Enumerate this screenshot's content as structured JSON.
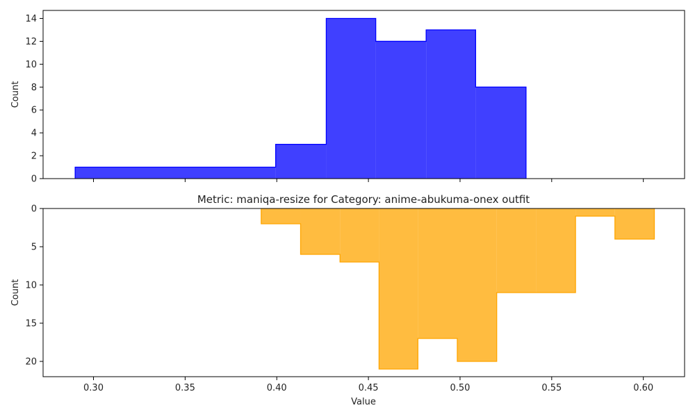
{
  "chart_data": [
    {
      "type": "histogram-step",
      "title": "",
      "xlabel": "",
      "ylabel": "Count",
      "xlim": [
        0.2725,
        0.6225
      ],
      "ylim": [
        0,
        14.7
      ],
      "y_inverted": false,
      "xticks": [
        "0.30",
        "0.35",
        "0.40",
        "0.45",
        "0.50",
        "0.55",
        "0.60"
      ],
      "xtick_values": [
        0.3,
        0.35,
        0.4,
        0.45,
        0.5,
        0.55,
        0.6
      ],
      "xtick_labels_visible": false,
      "yticks": [
        "0",
        "2",
        "4",
        "6",
        "8",
        "10",
        "12",
        "14"
      ],
      "ytick_values": [
        0,
        2,
        4,
        6,
        8,
        10,
        12,
        14
      ],
      "color": "#0000ff",
      "bin_edges": [
        0.29,
        0.3994,
        0.427,
        0.454,
        0.4815,
        0.5085,
        0.536
      ],
      "counts": [
        1,
        3,
        14,
        12,
        13,
        8
      ],
      "grid": false
    },
    {
      "type": "histogram-step",
      "title": "Metric: maniqa-resize for Category: anime-abukuma-onex outfit",
      "xlabel": "Value",
      "ylabel": "Count",
      "xlim": [
        0.2725,
        0.6225
      ],
      "ylim": [
        0,
        22
      ],
      "y_inverted": true,
      "xticks": [
        "0.30",
        "0.35",
        "0.40",
        "0.45",
        "0.50",
        "0.55",
        "0.60"
      ],
      "xtick_values": [
        0.3,
        0.35,
        0.4,
        0.45,
        0.5,
        0.55,
        0.6
      ],
      "xtick_labels_visible": true,
      "yticks": [
        "0",
        "5",
        "10",
        "15",
        "20"
      ],
      "ytick_values": [
        0,
        5,
        10,
        15,
        20
      ],
      "color": "#ffa500",
      "bin_edges": [
        0.3915,
        0.413,
        0.4345,
        0.4558,
        0.477,
        0.4985,
        0.52,
        0.5415,
        0.563,
        0.5845,
        0.606
      ],
      "counts": [
        2,
        6,
        7,
        21,
        17,
        20,
        11,
        11,
        1,
        4
      ],
      "grid": false
    }
  ]
}
